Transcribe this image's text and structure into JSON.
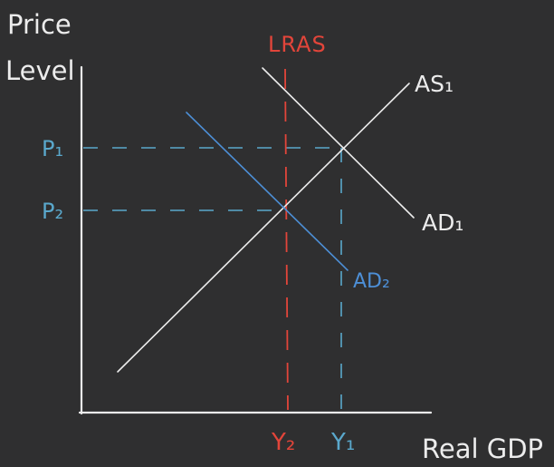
{
  "axis_labels": {
    "y_line1": "Price",
    "y_line2": "Level",
    "x": "Real GDP"
  },
  "price_levels": {
    "p1": "P₁",
    "p2": "P₂"
  },
  "output_levels": {
    "y2": "Y₂",
    "y1": "Y₁"
  },
  "curves": {
    "lras": "LRAS",
    "as1": "AS₁",
    "ad1": "AD₁",
    "ad2": "AD₂"
  },
  "colors": {
    "background": "#2f2f30",
    "ink": "#ececec",
    "lras": "#e2453a",
    "ad2": "#4d8fd6",
    "guide": "#5aa8cc"
  }
}
